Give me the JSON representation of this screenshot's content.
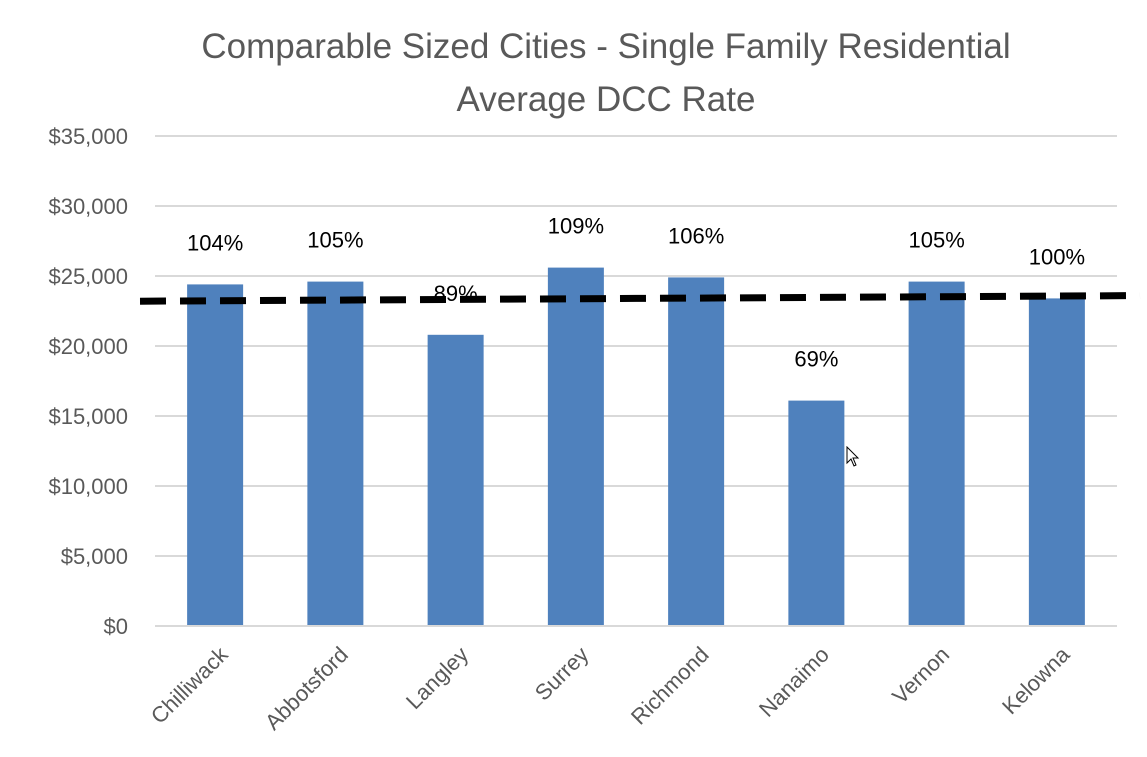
{
  "chart_data": {
    "type": "bar",
    "title": [
      "Comparable Sized Cities  - Single Family Residential",
      "Average DCC Rate"
    ],
    "xlabel": "",
    "ylabel": "",
    "categories": [
      "Chilliwack",
      "Abbotsford",
      "Langley",
      "Surrey",
      "Richmond",
      "Nanaimo",
      "Vernon",
      "Kelowna"
    ],
    "values": [
      24400,
      24600,
      20800,
      25600,
      24900,
      16100,
      24600,
      23400
    ],
    "data_labels": [
      "104%",
      "105%",
      "89%",
      "109%",
      "106%",
      "69%",
      "105%",
      "100%"
    ],
    "ylim": [
      0,
      35000
    ],
    "yticks": [
      0,
      5000,
      10000,
      15000,
      20000,
      25000,
      30000,
      35000
    ],
    "ytick_labels": [
      "$0",
      "$5,000",
      "$10,000",
      "$15,000",
      "$20,000",
      "$25,000",
      "$30,000",
      "$35,000"
    ],
    "average_line": {
      "style": "dashed",
      "value_start": 23200,
      "value_end": 23600
    },
    "grid": true,
    "colors": {
      "bar": "#4f81bd",
      "grid": "#d9d9d9",
      "average_line": "#000000",
      "text": "#595959"
    }
  }
}
